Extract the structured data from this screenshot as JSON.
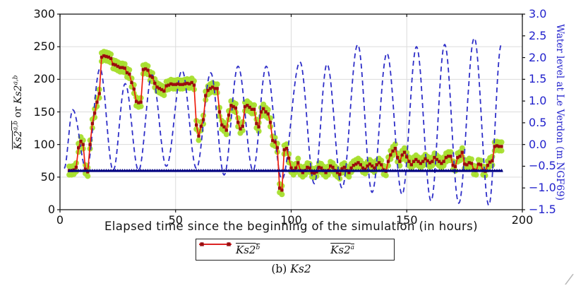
{
  "chart_data": {
    "type": "line",
    "title": "",
    "xlabel": "Elapsed time since the beginning of the simulation (in hours)",
    "ylabel_left": {
      "overline_base": "Ks2",
      "overline_sup": "a,b",
      "connector": " or ",
      "plain_base": "Ks2",
      "plain_sup": "a,b"
    },
    "ylabel_right": "Water level at Le Verdon (m NGF69)",
    "xlim": [
      0,
      200
    ],
    "ylim_left": [
      0,
      300
    ],
    "ylim_right": [
      -1.5,
      3.0
    ],
    "xticks": {
      "values": [
        0,
        50,
        100,
        150,
        200
      ],
      "labels": [
        "0",
        "50",
        "100",
        "150",
        "200"
      ]
    },
    "yticks_left": {
      "values": [
        0,
        50,
        100,
        150,
        200,
        250,
        300
      ],
      "labels": [
        "0",
        "50",
        "100",
        "150",
        "200",
        "250",
        "300"
      ]
    },
    "yticks_right": {
      "values": [
        3.0,
        2.5,
        2.0,
        1.5,
        1.0,
        0.5,
        0.0,
        -0.5,
        -1.0,
        -1.5
      ],
      "labels": [
        "3.0",
        "2.5",
        "2.0",
        "1.5",
        "1.0",
        "0.5",
        "0.0",
        "−0.5",
        "−1.0",
        "−1.5"
      ]
    },
    "grid": {
      "x_values": [
        50,
        100,
        150
      ],
      "y_values": [
        50,
        100,
        150,
        200,
        250
      ],
      "color": "#dcdcdc"
    },
    "colors": {
      "ks2a_line": "#ee1c0c",
      "ks2a_marker": "#9b0d0d",
      "ks2b_line": "#000080",
      "legend_ks2b_line": "#2222bb",
      "water_level": "#2e2ec8",
      "ensemble": "#a6de2d",
      "axis_right_text": "#2222cc",
      "frame": "#2a2a2a",
      "grid": "#dcdcdc"
    },
    "series": {
      "ks2b": {
        "name": "Ks2b mean",
        "axis": "left",
        "constant_value": 60,
        "x_start": 4,
        "x_end": 191.5
      },
      "ks2a": {
        "name": "Ks2a mean",
        "axis": "left",
        "x_start": 4,
        "x_step": 1,
        "values": [
          60,
          60,
          61,
          65,
          95,
          105,
          100,
          62,
          58,
          100,
          132,
          148,
          165,
          178,
          234,
          236,
          235,
          234,
          232,
          223,
          222,
          220,
          218,
          218,
          217,
          210,
          208,
          195,
          185,
          166,
          164,
          165,
          215,
          216,
          214,
          205,
          203,
          194,
          188,
          186,
          184,
          182,
          190,
          191,
          193,
          192,
          192,
          193,
          192,
          192,
          193,
          194,
          193,
          195,
          191,
          130,
          113,
          128,
          138,
          175,
          183,
          186,
          188,
          186,
          186,
          150,
          130,
          127,
          122,
          145,
          160,
          158,
          156,
          134,
          124,
          128,
          158,
          160,
          157,
          154,
          154,
          132,
          127,
          150,
          155,
          150,
          147,
          134,
          106,
          104,
          95,
          33,
          30,
          92,
          94,
          79,
          64,
          60,
          64,
          72,
          60,
          57,
          60,
          65,
          64,
          57,
          56,
          58,
          65,
          64,
          60,
          57,
          60,
          67,
          65,
          60,
          57,
          54,
          63,
          65,
          60,
          57,
          64,
          68,
          70,
          72,
          69,
          64,
          62,
          67,
          70,
          67,
          64,
          69,
          72,
          69,
          61,
          59,
          74,
          84,
          90,
          94,
          80,
          74,
          84,
          88,
          81,
          74,
          69,
          74,
          77,
          74,
          71,
          74,
          78,
          75,
          72,
          74,
          80,
          77,
          74,
          71,
          74,
          80,
          82,
          82,
          68,
          66,
          80,
          82,
          88,
          70,
          69,
          72,
          71,
          61,
          60,
          70,
          69,
          60,
          59,
          68,
          73,
          75,
          97,
          98,
          97,
          97
        ]
      },
      "ensemble": {
        "name": "ensemble scatter",
        "axis": "left",
        "offset": 6.5
      },
      "water_level": {
        "name": "water level",
        "axis": "right",
        "extrema": [
          [
            1.8,
            -0.55
          ],
          [
            5.5,
            0.8
          ],
          [
            11.5,
            -0.6
          ],
          [
            17.3,
            1.75
          ],
          [
            23.0,
            -0.6
          ],
          [
            28.2,
            1.4
          ],
          [
            34.0,
            -0.6
          ],
          [
            39.8,
            1.6
          ],
          [
            46.0,
            -0.5
          ],
          [
            52.8,
            1.7
          ],
          [
            59.0,
            -0.55
          ],
          [
            65.2,
            1.65
          ],
          [
            71.0,
            -0.7
          ],
          [
            77.0,
            1.8
          ],
          [
            83.5,
            -0.6
          ],
          [
            89.2,
            1.8
          ],
          [
            96.0,
            -0.8
          ],
          [
            103.8,
            1.9
          ],
          [
            110.0,
            -0.9
          ],
          [
            115.5,
            1.85
          ],
          [
            122.0,
            -1.0
          ],
          [
            128.8,
            2.3
          ],
          [
            135.0,
            -1.1
          ],
          [
            141.4,
            2.1
          ],
          [
            148.0,
            -1.15
          ],
          [
            154.2,
            2.25
          ],
          [
            160.5,
            -1.3
          ],
          [
            166.4,
            2.3
          ],
          [
            172.5,
            -1.35
          ],
          [
            179.2,
            2.45
          ],
          [
            185.5,
            -1.4
          ],
          [
            190.9,
            2.3
          ]
        ]
      }
    },
    "legend": {
      "entries": [
        {
          "base": "Ks2",
          "sup": "b",
          "series": "ks2b"
        },
        {
          "base": "Ks2",
          "sup": "a",
          "series": "ks2a"
        }
      ]
    },
    "caption": {
      "index": "(b)",
      "label": "Ks2"
    },
    "corner_artifact": "/"
  }
}
